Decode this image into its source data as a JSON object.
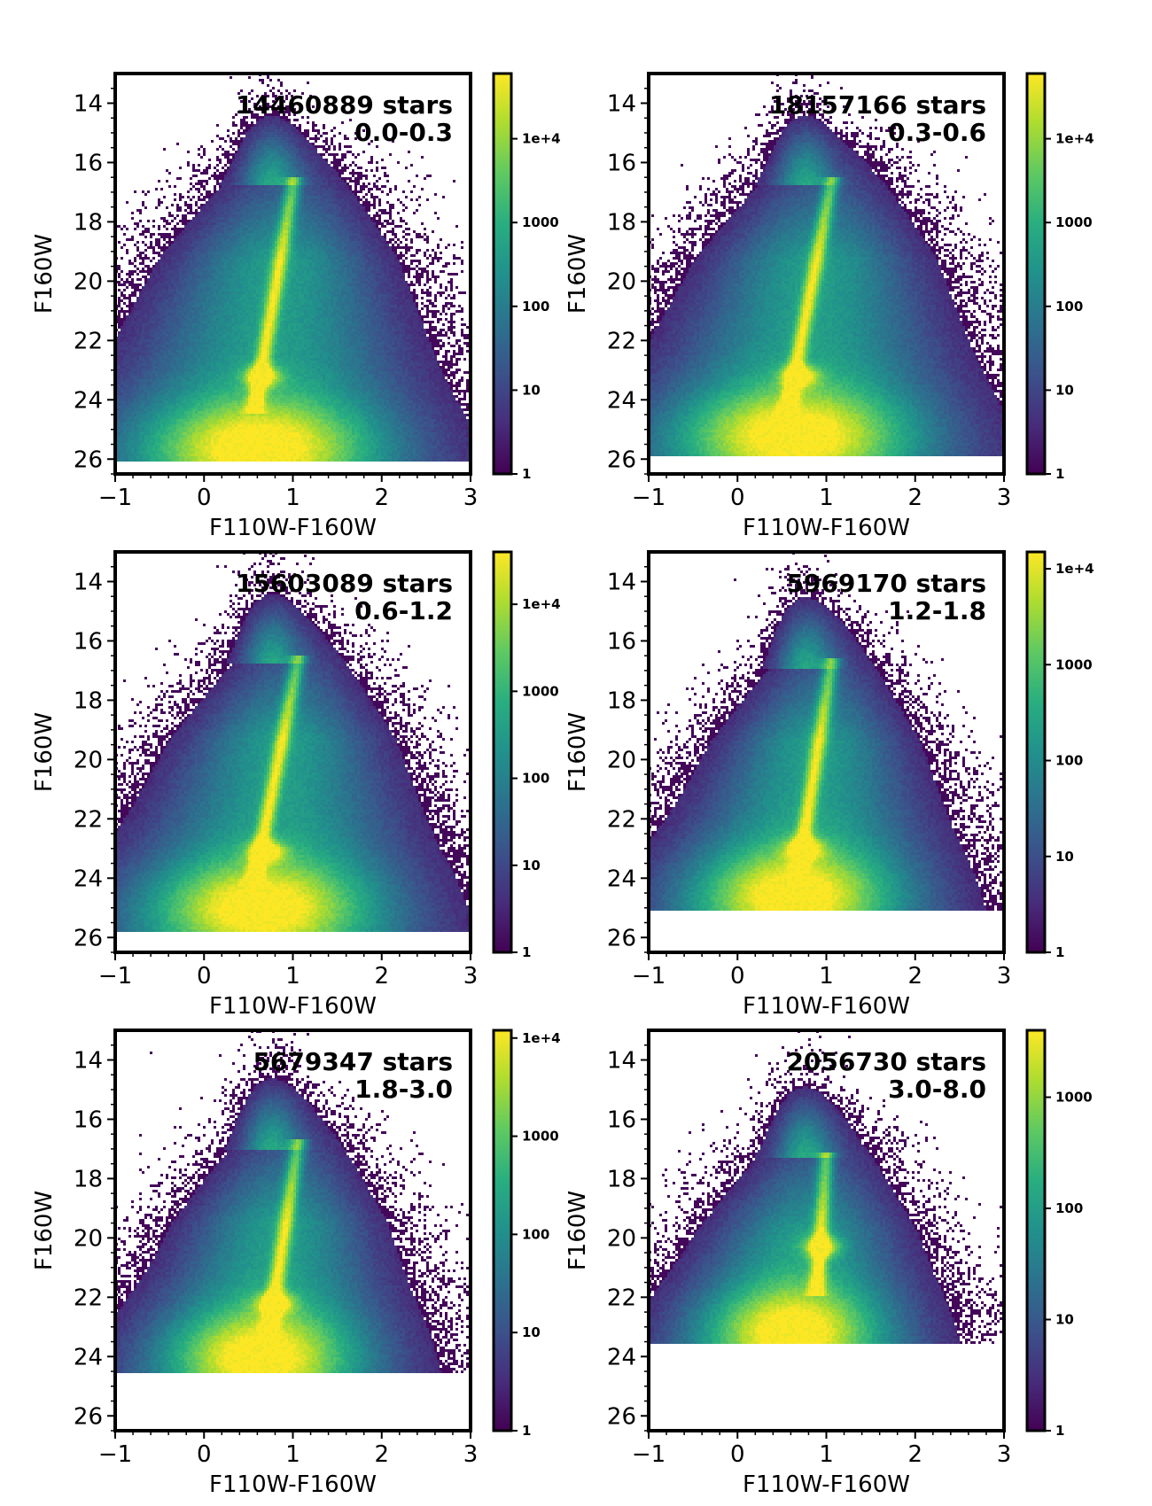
{
  "chart_data": [
    {
      "type": "heatmap",
      "annotation": {
        "count": "14460889 stars",
        "range": "0.0-0.3"
      },
      "xlabel": "F110W-F160W",
      "ylabel": "F160W",
      "xlim": [
        -1,
        3
      ],
      "ylim": [
        26.5,
        13
      ],
      "xticks": [
        "−1",
        "0",
        "1",
        "2",
        "3"
      ],
      "yticks": [
        "14",
        "16",
        "18",
        "20",
        "22",
        "24",
        "26"
      ],
      "colorbar": {
        "scale": "log",
        "min": 1,
        "max": 60000,
        "ticks": [
          1,
          10,
          100,
          1000,
          10000
        ],
        "tick_labels": [
          "1",
          "10",
          "100",
          "1000",
          "1e+4"
        ]
      },
      "features": {
        "rc": [
          0.65,
          23.2
        ],
        "rgb_top": [
          1.0,
          16.8
        ],
        "rgb_base": [
          0.6,
          23.8
        ],
        "faint_limit": 26.1,
        "ms_floor": 25.6,
        "bright_mag": 13.3,
        "spread": 1.0
      }
    },
    {
      "type": "heatmap",
      "annotation": {
        "count": "18157166 stars",
        "range": "0.3-0.6"
      },
      "xlabel": "F110W-F160W",
      "ylabel": "F160W",
      "xlim": [
        -1,
        3
      ],
      "ylim": [
        26.5,
        13
      ],
      "xticks": [
        "−1",
        "0",
        "1",
        "2",
        "3"
      ],
      "yticks": [
        "14",
        "16",
        "18",
        "20",
        "22",
        "24",
        "26"
      ],
      "colorbar": {
        "scale": "log",
        "min": 1,
        "max": 60000,
        "ticks": [
          1,
          10,
          100,
          1000,
          10000
        ],
        "tick_labels": [
          "1",
          "10",
          "100",
          "1000",
          "1e+4"
        ]
      },
      "features": {
        "rc": [
          0.7,
          23.2
        ],
        "rgb_top": [
          1.05,
          16.8
        ],
        "rgb_base": [
          0.6,
          23.8
        ],
        "faint_limit": 25.9,
        "ms_floor": 25.2,
        "bright_mag": 13.3,
        "spread": 1.0
      }
    },
    {
      "type": "heatmap",
      "annotation": {
        "count": "15603089 stars",
        "range": "0.6-1.2"
      },
      "xlabel": "F110W-F160W",
      "ylabel": "F160W",
      "xlim": [
        -1,
        3
      ],
      "ylim": [
        26.5,
        13
      ],
      "xticks": [
        "−1",
        "0",
        "1",
        "2",
        "3"
      ],
      "yticks": [
        "14",
        "16",
        "18",
        "20",
        "22",
        "24",
        "26"
      ],
      "colorbar": {
        "scale": "log",
        "min": 1,
        "max": 40000,
        "ticks": [
          1,
          10,
          100,
          1000,
          10000
        ],
        "tick_labels": [
          "1",
          "10",
          "100",
          "1000",
          "1e+4"
        ]
      },
      "features": {
        "rc": [
          0.7,
          23.1
        ],
        "rgb_top": [
          1.05,
          16.8
        ],
        "rgb_base": [
          0.6,
          23.6
        ],
        "faint_limit": 25.8,
        "ms_floor": 25.0,
        "bright_mag": 13.8,
        "spread": 0.95
      }
    },
    {
      "type": "heatmap",
      "annotation": {
        "count": "5969170 stars",
        "range": "1.2-1.8"
      },
      "xlabel": "F110W-F160W",
      "ylabel": "F160W",
      "xlim": [
        -1,
        3
      ],
      "ylim": [
        26.5,
        13
      ],
      "xticks": [
        "−1",
        "0",
        "1",
        "2",
        "3"
      ],
      "yticks": [
        "14",
        "16",
        "18",
        "20",
        "22",
        "24",
        "26"
      ],
      "colorbar": {
        "scale": "log",
        "min": 1,
        "max": 15000,
        "ticks": [
          1,
          10,
          100,
          1000,
          10000
        ],
        "tick_labels": [
          "1",
          "10",
          "100",
          "1000",
          "1e+4"
        ]
      },
      "features": {
        "rc": [
          0.75,
          23.0
        ],
        "rgb_top": [
          1.05,
          16.9
        ],
        "rgb_base": [
          0.7,
          23.5
        ],
        "faint_limit": 25.1,
        "ms_floor": 24.6,
        "bright_mag": 14.0,
        "spread": 0.85
      }
    },
    {
      "type": "heatmap",
      "annotation": {
        "count": "5679347 stars",
        "range": "1.8-3.0"
      },
      "xlabel": "F110W-F160W",
      "ylabel": "F160W",
      "xlim": [
        -1,
        3
      ],
      "ylim": [
        26.5,
        13
      ],
      "xticks": [
        "−1",
        "0",
        "1",
        "2",
        "3"
      ],
      "yticks": [
        "14",
        "16",
        "18",
        "20",
        "22",
        "24",
        "26"
      ],
      "colorbar": {
        "scale": "log",
        "min": 1,
        "max": 12000,
        "ticks": [
          1,
          10,
          100,
          1000,
          10000
        ],
        "tick_labels": [
          "1",
          "10",
          "100",
          "1000",
          "1e+4"
        ]
      },
      "features": {
        "rc": [
          0.8,
          22.2
        ],
        "rgb_top": [
          1.05,
          17.0
        ],
        "rgb_base": [
          0.75,
          22.8
        ],
        "faint_limit": 24.6,
        "ms_floor": 24.0,
        "bright_mag": 13.2,
        "spread": 0.8
      }
    },
    {
      "type": "heatmap",
      "annotation": {
        "count": "2056730 stars",
        "range": "3.0-8.0"
      },
      "xlabel": "F110W-F160W",
      "ylabel": "F160W",
      "xlim": [
        -1,
        3
      ],
      "ylim": [
        26.5,
        13
      ],
      "xticks": [
        "−1",
        "0",
        "1",
        "2",
        "3"
      ],
      "yticks": [
        "14",
        "16",
        "18",
        "20",
        "22",
        "24",
        "26"
      ],
      "colorbar": {
        "scale": "log",
        "min": 1,
        "max": 4000,
        "ticks": [
          1,
          10,
          100,
          1000
        ],
        "tick_labels": [
          "1",
          "10",
          "100",
          "1000"
        ]
      },
      "features": {
        "rc": [
          0.95,
          20.3
        ],
        "rgb_top": [
          1.0,
          17.3
        ],
        "rgb_base": [
          0.9,
          21.5
        ],
        "faint_limit": 23.6,
        "ms_floor": 23.2,
        "bright_mag": 13.5,
        "spread": 0.75
      }
    }
  ]
}
